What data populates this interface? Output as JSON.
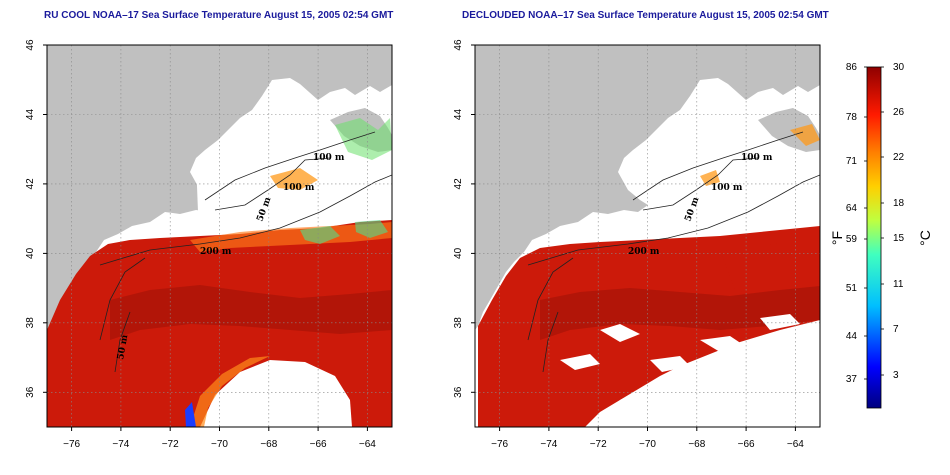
{
  "panels": [
    {
      "title": "RU COOL NOAA–17 Sea Surface Temperature August 15, 2005 02:54 GMT",
      "contours": [
        "100 m",
        "100 m",
        "50 m",
        "200 m",
        "50 m"
      ]
    },
    {
      "title": "DECLOUDED NOAA–17 Sea Surface Temperature August 15, 2005 02:54 GMT",
      "contours": [
        "100 m",
        "100 m",
        "50 m",
        "200 m"
      ]
    }
  ],
  "axes": {
    "lat_ticks": [
      "36",
      "38",
      "40",
      "42",
      "44",
      "46"
    ],
    "lon_ticks": [
      "−76",
      "−74",
      "−72",
      "−70",
      "−68",
      "−66",
      "−64"
    ],
    "lat_range": [
      35,
      46
    ],
    "lon_range": [
      -77,
      -63
    ]
  },
  "colorbar": {
    "fahrenheit_ticks": [
      "86",
      "78",
      "71",
      "64",
      "59",
      "51",
      "44",
      "37"
    ],
    "celsius_ticks": [
      "30",
      "26",
      "22",
      "18",
      "15",
      "11",
      "7",
      "3"
    ],
    "fahrenheit_unit": "°F",
    "celsius_unit": "°C",
    "range_c": [
      0,
      30
    ]
  },
  "colors": {
    "land": "#c0c0c0",
    "ocean_warm": "#cc1a0a",
    "ocean_dark": "#9c1208",
    "cloud": "#ffffff",
    "title": "#1a1a9c"
  }
}
